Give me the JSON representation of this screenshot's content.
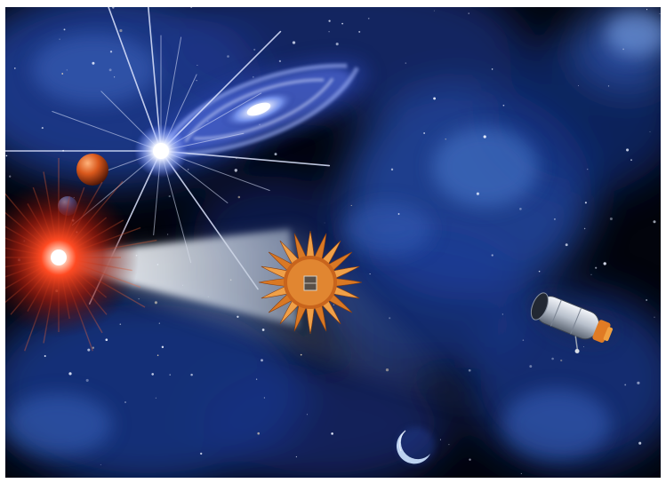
{
  "scene": {
    "subject": "space-illustration",
    "elements": [
      "star-field",
      "blue-nebula",
      "spiral-galaxy",
      "bright-star",
      "red-star",
      "orange-planet",
      "blue-planet",
      "light-beam",
      "flower-starshade",
      "space-telescope",
      "crescent-moon"
    ],
    "colors": {
      "space": "#02040c",
      "nebula": "#1e3f9a",
      "nebula_light": "#4a7bd0",
      "galaxy": "#7f9cf5",
      "red_star": "#ff3a1e",
      "starshade": "#e8862a",
      "planet_orange": "#d9581c",
      "planet_blue": "#2f63b8",
      "beam": "#e9eef5"
    }
  }
}
